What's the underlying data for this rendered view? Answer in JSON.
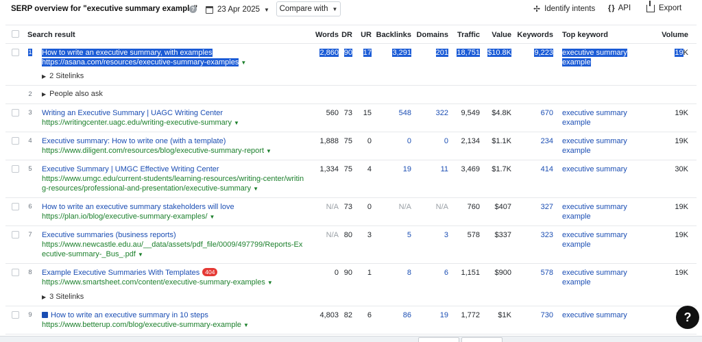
{
  "header": {
    "title": "SERP overview for \"executive summary example\"",
    "date": "23 Apr 2025",
    "compare_label": "Compare with",
    "identify_label": "Identify intents",
    "api_label": "API",
    "export_label": "Export"
  },
  "columns": {
    "search_result": "Search result",
    "words": "Words",
    "dr": "DR",
    "ur": "UR",
    "backlinks": "Backlinks",
    "domains": "Domains",
    "traffic": "Traffic",
    "value": "Value",
    "keywords": "Keywords",
    "top_keyword": "Top keyword",
    "volume": "Volume"
  },
  "rows": [
    {
      "rank": "1",
      "title": "How to write an executive summary, with examples",
      "url": "https://asana.com/resources/executive-summary-examples",
      "sitelinks": "2 Sitelinks",
      "words": "2,860",
      "dr": "90",
      "ur": "17",
      "backlinks": "3,291",
      "domains": "201",
      "traffic": "18,751",
      "value": "$10.8K",
      "keywords": "9,223",
      "top_keyword_1": "executive summary",
      "top_keyword_2": "example",
      "volume_a": "19",
      "volume_b": "K"
    },
    {
      "rank": "2",
      "people_also_ask": "People also ask"
    },
    {
      "rank": "3",
      "title": "Writing an Executive Summary | UAGC Writing Center",
      "url": "https://writingcenter.uagc.edu/writing-executive-summary",
      "words": "560",
      "dr": "73",
      "ur": "15",
      "backlinks": "548",
      "domains": "322",
      "traffic": "9,549",
      "value": "$4.8K",
      "keywords": "670",
      "top_keyword_1": "executive summary",
      "top_keyword_2": "example",
      "volume": "19K"
    },
    {
      "rank": "4",
      "title": "Executive summary: How to write one (with a template)",
      "url": "https://www.diligent.com/resources/blog/executive-summary-report",
      "words": "1,888",
      "dr": "75",
      "ur": "0",
      "backlinks": "0",
      "domains": "0",
      "traffic": "2,134",
      "value": "$1.1K",
      "keywords": "234",
      "top_keyword_1": "executive summary",
      "top_keyword_2": "example",
      "volume": "19K"
    },
    {
      "rank": "5",
      "title": "Executive Summary | UMGC Effective Writing Center",
      "url_1": "https://www.umgc.edu/current-students/learning-resources/writing-center/writin",
      "url_2": "g-resources/professional-and-presentation/executive-summary",
      "words": "1,334",
      "dr": "75",
      "ur": "4",
      "backlinks": "19",
      "domains": "11",
      "traffic": "3,469",
      "value": "$1.7K",
      "keywords": "414",
      "top_keyword_1": "executive summary",
      "volume": "30K"
    },
    {
      "rank": "6",
      "title": "How to write an executive summary stakeholders will love",
      "url": "https://plan.io/blog/executive-summary-examples/",
      "words": "N/A",
      "dr": "73",
      "ur": "0",
      "backlinks": "N/A",
      "domains": "N/A",
      "traffic": "760",
      "value": "$407",
      "keywords": "327",
      "top_keyword_1": "executive summary",
      "top_keyword_2": "example",
      "volume": "19K"
    },
    {
      "rank": "7",
      "title": "Executive summaries (business reports)",
      "url_1": "https://www.newcastle.edu.au/__data/assets/pdf_file/0009/497799/Reports-Ex",
      "url_2": "ecutive-summary-_Bus_.pdf",
      "words": "N/A",
      "dr": "80",
      "ur": "3",
      "backlinks": "5",
      "domains": "3",
      "traffic": "578",
      "value": "$337",
      "keywords": "323",
      "top_keyword_1": "executive summary",
      "top_keyword_2": "example",
      "volume": "19K"
    },
    {
      "rank": "8",
      "title": "Example Executive Summaries With Templates",
      "badge": "404",
      "url": "https://www.smartsheet.com/content/executive-summary-examples",
      "sitelinks": "3 Sitelinks",
      "words": "0",
      "dr": "90",
      "ur": "1",
      "backlinks": "8",
      "domains": "6",
      "traffic": "1,151",
      "value": "$900",
      "keywords": "578",
      "top_keyword_1": "executive summary",
      "top_keyword_2": "example",
      "volume": "19K"
    },
    {
      "rank": "9",
      "title": "How to write an executive summary in 10 steps",
      "url": "https://www.betterup.com/blog/executive-summary-example",
      "words": "4,803",
      "dr": "82",
      "ur": "6",
      "backlinks": "86",
      "domains": "19",
      "traffic": "1,772",
      "value": "$1K",
      "keywords": "730",
      "top_keyword_1": "executive summary",
      "volume": "3"
    }
  ],
  "help_fab": "?"
}
